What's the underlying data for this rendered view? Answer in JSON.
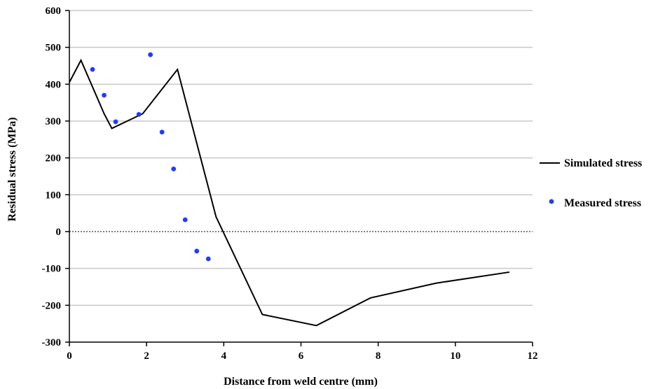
{
  "chart_data": {
    "type": "scatter",
    "title": "",
    "xlabel": "Distance from weld centre (mm)",
    "ylabel": "Residual stress (MPa)",
    "xlim": [
      0,
      12
    ],
    "ylim": [
      -300,
      600
    ],
    "x_ticks": [
      "0",
      "2",
      "4",
      "6",
      "8",
      "10",
      "12"
    ],
    "y_ticks": [
      "600",
      "500",
      "400",
      "300",
      "200",
      "100",
      "0",
      "-100",
      "-200",
      "-300"
    ],
    "grid": "horizontal",
    "zero_line": "dotted",
    "legend_position": "right",
    "series": [
      {
        "name": "Simulated stress",
        "kind": "line",
        "color": "#000000",
        "x": [
          0,
          0.3,
          0.9,
          1.1,
          1.9,
          2.8,
          3.8,
          5.0,
          6.4,
          7.8,
          9.5,
          11.4
        ],
        "y": [
          405,
          465,
          320,
          280,
          320,
          440,
          40,
          -225,
          -255,
          -180,
          -140,
          -110
        ]
      },
      {
        "name": "Measured stress",
        "kind": "scatter",
        "color": "#1f3cff",
        "x": [
          0.6,
          0.9,
          1.2,
          1.8,
          2.1,
          2.4,
          2.7,
          3.0,
          3.3,
          3.6
        ],
        "y": [
          440,
          370,
          298,
          318,
          480,
          270,
          170,
          32,
          -53,
          -74
        ]
      }
    ]
  }
}
